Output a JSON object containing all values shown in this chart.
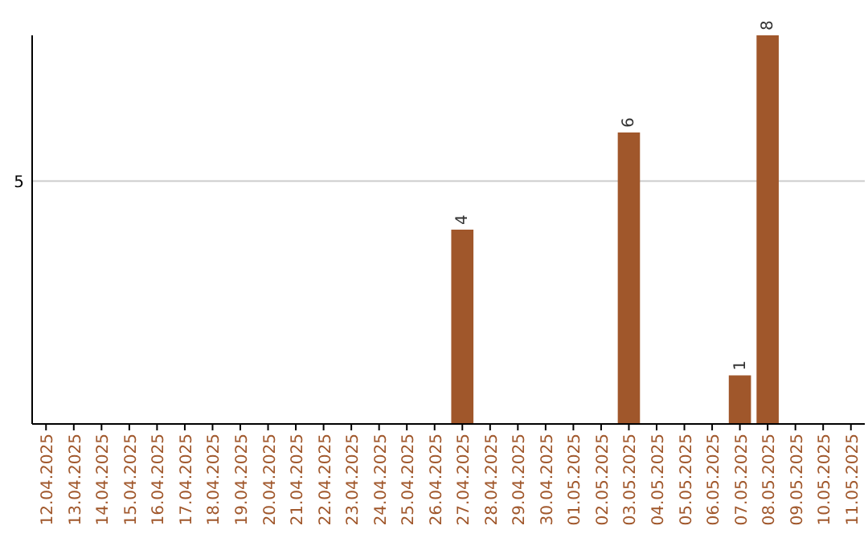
{
  "chart_data": {
    "type": "bar",
    "categories": [
      "12.04.2025",
      "13.04.2025",
      "14.04.2025",
      "15.04.2025",
      "16.04.2025",
      "17.04.2025",
      "18.04.2025",
      "19.04.2025",
      "20.04.2025",
      "21.04.2025",
      "22.04.2025",
      "23.04.2025",
      "24.04.2025",
      "25.04.2025",
      "26.04.2025",
      "27.04.2025",
      "28.04.2025",
      "29.04.2025",
      "30.04.2025",
      "01.05.2025",
      "02.05.2025",
      "03.05.2025",
      "04.05.2025",
      "05.05.2025",
      "06.05.2025",
      "07.05.2025",
      "08.05.2025",
      "09.05.2025",
      "10.05.2025",
      "11.05.2025"
    ],
    "values": [
      null,
      null,
      null,
      null,
      null,
      null,
      null,
      null,
      null,
      null,
      null,
      null,
      null,
      null,
      null,
      4,
      null,
      null,
      null,
      null,
      null,
      6,
      null,
      null,
      null,
      1,
      8,
      null,
      null,
      null
    ],
    "data_labels": true,
    "color": "#a0572b",
    "ylim": [
      0,
      8
    ],
    "ref_lines": [
      {
        "axis": "y",
        "value": 5,
        "label": "5",
        "color": "#cccccc"
      }
    ]
  }
}
